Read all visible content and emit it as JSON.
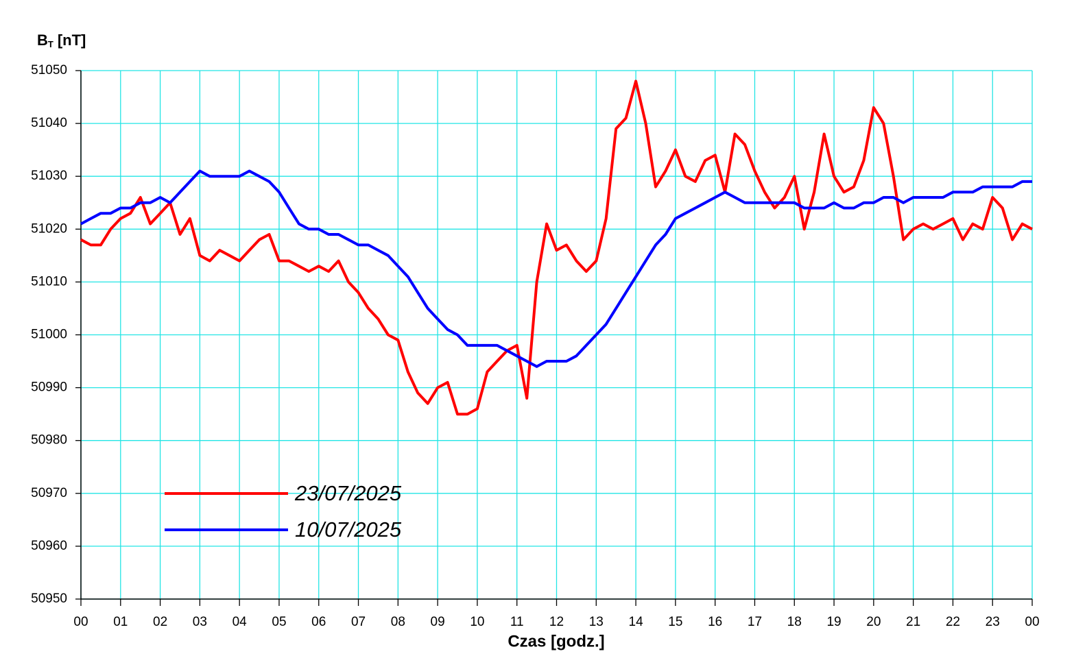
{
  "chart_data": {
    "type": "line",
    "ylabel": {
      "main": "B",
      "sub": "T",
      "unit": "[nT]"
    },
    "xlabel": "Czas [godz.]",
    "x": [
      0,
      0.25,
      0.5,
      0.75,
      1,
      1.25,
      1.5,
      1.75,
      2,
      2.25,
      2.5,
      2.75,
      3,
      3.25,
      3.5,
      3.75,
      4,
      4.25,
      4.5,
      4.75,
      5,
      5.25,
      5.5,
      5.75,
      6,
      6.25,
      6.5,
      6.75,
      7,
      7.25,
      7.5,
      7.75,
      8,
      8.25,
      8.5,
      8.75,
      9,
      9.25,
      9.5,
      9.75,
      10,
      10.25,
      10.5,
      10.75,
      11,
      11.25,
      11.5,
      11.75,
      12,
      12.25,
      12.5,
      12.75,
      13,
      13.25,
      13.5,
      13.75,
      14,
      14.25,
      14.5,
      14.75,
      15,
      15.25,
      15.5,
      15.75,
      16,
      16.25,
      16.5,
      16.75,
      17,
      17.25,
      17.5,
      17.75,
      18,
      18.25,
      18.5,
      18.75,
      19,
      19.25,
      19.5,
      19.75,
      20,
      20.25,
      20.5,
      20.75,
      21,
      21.25,
      21.5,
      21.75,
      22,
      22.25,
      22.5,
      22.75,
      23,
      23.25,
      23.5,
      23.75,
      24
    ],
    "series": [
      {
        "name": "23/07/2025",
        "color": "#ff0000",
        "values": [
          51018,
          51017,
          51017,
          51020,
          51022,
          51023,
          51026,
          51021,
          51023,
          51025,
          51019,
          51022,
          51015,
          51014,
          51016,
          51015,
          51014,
          51016,
          51018,
          51019,
          51014,
          51014,
          51013,
          51012,
          51013,
          51012,
          51014,
          51010,
          51008,
          51005,
          51003,
          51000,
          50999,
          50993,
          50989,
          50987,
          50990,
          50991,
          50985,
          50985,
          50986,
          50993,
          50995,
          50997,
          50998,
          50988,
          51010,
          51021,
          51016,
          51017,
          51014,
          51012,
          51014,
          51022,
          51039,
          51041,
          51048,
          51040,
          51028,
          51031,
          51035,
          51030,
          51029,
          51033,
          51034,
          51027,
          51038,
          51036,
          51031,
          51027,
          51024,
          51026,
          51030,
          51020,
          51027,
          51038,
          51030,
          51027,
          51028,
          51033,
          51043,
          51040,
          51030,
          51018,
          51020,
          51021,
          51020,
          51021,
          51022,
          51018,
          51021,
          51020,
          51026,
          51024,
          51018,
          51021,
          51020
        ]
      },
      {
        "name": "10/07/2025",
        "color": "#0000ff",
        "values": [
          51021,
          51022,
          51023,
          51023,
          51024,
          51024,
          51025,
          51025,
          51026,
          51025,
          51027,
          51029,
          51031,
          51030,
          51030,
          51030,
          51030,
          51031,
          51030,
          51029,
          51027,
          51024,
          51021,
          51020,
          51020,
          51019,
          51019,
          51018,
          51017,
          51017,
          51016,
          51015,
          51013,
          51011,
          51008,
          51005,
          51003,
          51001,
          51000,
          50998,
          50998,
          50998,
          50998,
          50997,
          50996,
          50995,
          50994,
          50995,
          50995,
          50995,
          50996,
          50998,
          51000,
          51002,
          51005,
          51008,
          51011,
          51014,
          51017,
          51019,
          51022,
          51023,
          51024,
          51025,
          51026,
          51027,
          51026,
          51025,
          51025,
          51025,
          51025,
          51025,
          51025,
          51024,
          51024,
          51024,
          51025,
          51024,
          51024,
          51025,
          51025,
          51026,
          51026,
          51025,
          51026,
          51026,
          51026,
          51026,
          51027,
          51027,
          51027,
          51028,
          51028,
          51028,
          51028,
          51029,
          51029
        ]
      }
    ],
    "xlim": [
      0,
      24
    ],
    "xticks": [
      {
        "value": 0,
        "label": "00"
      },
      {
        "value": 1,
        "label": "01"
      },
      {
        "value": 2,
        "label": "02"
      },
      {
        "value": 3,
        "label": "03"
      },
      {
        "value": 4,
        "label": "04"
      },
      {
        "value": 5,
        "label": "05"
      },
      {
        "value": 6,
        "label": "06"
      },
      {
        "value": 7,
        "label": "07"
      },
      {
        "value": 8,
        "label": "08"
      },
      {
        "value": 9,
        "label": "09"
      },
      {
        "value": 10,
        "label": "10"
      },
      {
        "value": 11,
        "label": "11"
      },
      {
        "value": 12,
        "label": "12"
      },
      {
        "value": 13,
        "label": "13"
      },
      {
        "value": 14,
        "label": "14"
      },
      {
        "value": 15,
        "label": "15"
      },
      {
        "value": 16,
        "label": "16"
      },
      {
        "value": 17,
        "label": "17"
      },
      {
        "value": 18,
        "label": "18"
      },
      {
        "value": 19,
        "label": "19"
      },
      {
        "value": 20,
        "label": "20"
      },
      {
        "value": 21,
        "label": "21"
      },
      {
        "value": 22,
        "label": "22"
      },
      {
        "value": 23,
        "label": "23"
      },
      {
        "value": 24,
        "label": "00"
      }
    ],
    "ylim": [
      50950,
      51050
    ],
    "yticks": [
      50950,
      50960,
      50970,
      50980,
      50990,
      51000,
      51010,
      51020,
      51030,
      51040,
      51050
    ],
    "grid": true,
    "grid_color": "#22e5e5",
    "legend": "lower left"
  }
}
